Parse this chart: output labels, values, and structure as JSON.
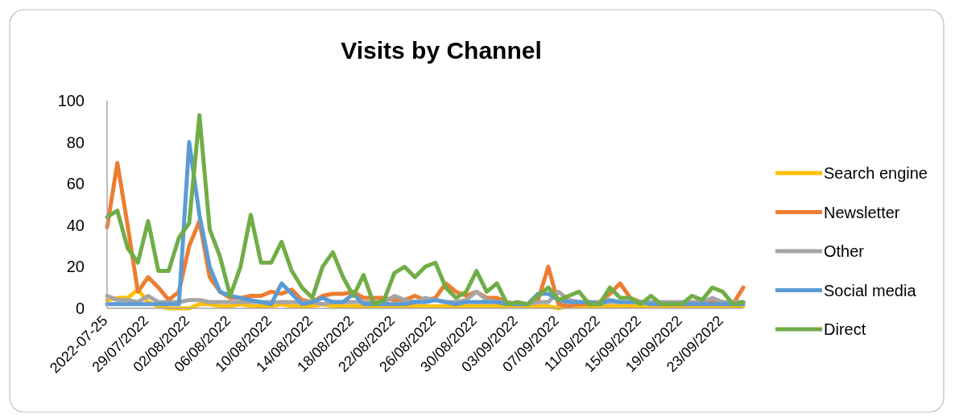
{
  "chart_data": {
    "type": "line",
    "title": "Visits by Channel",
    "categories": [
      "2022-07-25",
      null,
      null,
      null,
      "29/07/2022",
      null,
      null,
      null,
      "02/08/2022",
      null,
      null,
      null,
      "06/08/2022",
      null,
      null,
      null,
      "10/08/2022",
      null,
      null,
      null,
      "14/08/2022",
      null,
      null,
      null,
      "18/08/2022",
      null,
      null,
      null,
      "22/08/2022",
      null,
      null,
      null,
      "26/08/2022",
      null,
      null,
      null,
      "30/08/2022",
      null,
      null,
      null,
      "03/09/2022",
      null,
      null,
      null,
      "07/09/2022",
      null,
      null,
      null,
      "11/09/2022",
      null,
      null,
      null,
      "15/09/2022",
      null,
      null,
      null,
      "19/09/2022",
      null,
      null,
      null,
      "23/09/2022",
      null,
      null
    ],
    "series": [
      {
        "name": "Search engine",
        "color": "#ffc000",
        "values": [
          4,
          5,
          5,
          9,
          3,
          1,
          0,
          0,
          0,
          2,
          2,
          1,
          1,
          2,
          1,
          1,
          1,
          2,
          1,
          1,
          1,
          2,
          1,
          1,
          1,
          1,
          1,
          1,
          1,
          1,
          1,
          1,
          1,
          1,
          1,
          1,
          1,
          1,
          1,
          1,
          1,
          1,
          1,
          1,
          0,
          1,
          1,
          1,
          1,
          1,
          1,
          1,
          1,
          1,
          1,
          1,
          1,
          1,
          1,
          1,
          1,
          1,
          1
        ]
      },
      {
        "name": "Newsletter",
        "color": "#ed7d31",
        "values": [
          39,
          70,
          40,
          8,
          15,
          10,
          4,
          8,
          30,
          42,
          15,
          8,
          5,
          5,
          6,
          6,
          8,
          7,
          9,
          4,
          3,
          6,
          7,
          7,
          8,
          5,
          5,
          5,
          4,
          4,
          6,
          4,
          5,
          12,
          8,
          6,
          8,
          5,
          5,
          3,
          2,
          2,
          4,
          20,
          2,
          1,
          2,
          2,
          3,
          7,
          12,
          5,
          3,
          3,
          2,
          2,
          2,
          3,
          3,
          3,
          3,
          2,
          10
        ]
      },
      {
        "name": "Other",
        "color": "#a5a5a5",
        "values": [
          6,
          4,
          4,
          3,
          6,
          3,
          3,
          3,
          4,
          4,
          3,
          3,
          3,
          3,
          3,
          3,
          3,
          3,
          3,
          3,
          3,
          2,
          3,
          3,
          3,
          3,
          3,
          3,
          6,
          4,
          3,
          5,
          4,
          3,
          3,
          4,
          8,
          4,
          3,
          3,
          2,
          2,
          3,
          3,
          8,
          4,
          3,
          3,
          3,
          3,
          3,
          3,
          3,
          3,
          3,
          3,
          3,
          3,
          3,
          5,
          3,
          3,
          3
        ]
      },
      {
        "name": "Social media",
        "color": "#5b9bd5",
        "values": [
          2,
          2,
          2,
          2,
          2,
          2,
          2,
          2,
          80,
          45,
          20,
          8,
          6,
          5,
          4,
          3,
          2,
          12,
          7,
          2,
          3,
          5,
          3,
          3,
          7,
          2,
          2,
          2,
          2,
          2,
          3,
          3,
          4,
          3,
          2,
          3,
          3,
          3,
          3,
          2,
          2,
          2,
          7,
          7,
          4,
          3,
          3,
          3,
          2,
          4,
          3,
          3,
          3,
          2,
          2,
          2,
          2,
          2,
          2,
          2,
          2,
          2,
          2
        ]
      },
      {
        "name": "Direct",
        "color": "#70ad47",
        "values": [
          44,
          47,
          29,
          22,
          42,
          18,
          18,
          34,
          41,
          93,
          38,
          25,
          6,
          20,
          45,
          22,
          22,
          32,
          18,
          10,
          5,
          20,
          27,
          15,
          6,
          16,
          2,
          4,
          17,
          20,
          15,
          20,
          22,
          10,
          5,
          8,
          18,
          8,
          12,
          2,
          3,
          2,
          6,
          10,
          4,
          6,
          8,
          2,
          2,
          10,
          5,
          5,
          2,
          6,
          2,
          2,
          2,
          6,
          4,
          10,
          8,
          2,
          3
        ]
      }
    ],
    "ylim": [
      0,
      100
    ],
    "yticks": [
      0,
      20,
      40,
      60,
      80,
      100
    ],
    "grid": false,
    "legend": "right",
    "line_style": "solid",
    "marker": "none"
  }
}
